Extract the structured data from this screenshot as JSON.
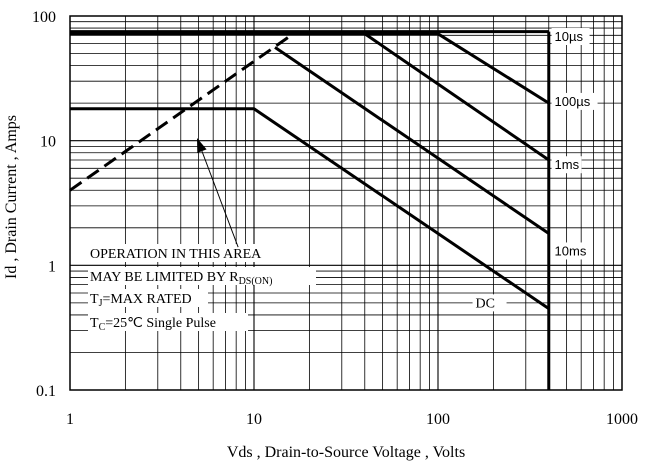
{
  "chart_data": {
    "type": "line",
    "xscale": "log",
    "yscale": "log",
    "xlim": [
      1,
      1000
    ],
    "ylim": [
      0.1,
      100
    ],
    "grid": true,
    "xlabel": "Vds , Drain-to-Source Voltage , Volts",
    "ylabel": "Id , Drain Current , Amps",
    "x_ticks": [
      "1",
      "10",
      "100",
      "1000"
    ],
    "y_ticks": [
      "0.1",
      "1",
      "10",
      "100"
    ],
    "series": [
      {
        "name": "10µs",
        "points": [
          [
            1,
            75
          ],
          [
            400,
            75
          ]
        ],
        "label_at": [
          430,
          63
        ]
      },
      {
        "name": "100µs",
        "points": [
          [
            1,
            72
          ],
          [
            100,
            72
          ],
          [
            400,
            20
          ]
        ],
        "label_at": [
          430,
          19
        ]
      },
      {
        "name": "1ms",
        "points": [
          [
            1,
            72
          ],
          [
            40,
            72
          ],
          [
            400,
            7
          ]
        ],
        "label_at": [
          430,
          5.9
        ]
      },
      {
        "name": "10ms",
        "points": [
          [
            13,
            56
          ],
          [
            400,
            1.8
          ]
        ],
        "label_at": [
          430,
          1.2
        ]
      },
      {
        "name": "DC",
        "points": [
          [
            1,
            18
          ],
          [
            10,
            18
          ],
          [
            400,
            0.45
          ]
        ],
        "label_at": [
          160,
          0.46
        ]
      }
    ],
    "rds_limit": {
      "points": [
        [
          1,
          4
        ],
        [
          17,
          75
        ]
      ],
      "style": "dashed"
    },
    "vds_limit": 400,
    "annotation": {
      "line1": "OPERATION IN THIS AREA",
      "line2_main": "MAY BE LIMITED BY R",
      "line2_sub": "DS(ON)",
      "line3_main": "T",
      "line3_sub": "J",
      "line3_rest": "=MAX RATED",
      "line4_main": "T",
      "line4_sub": "C",
      "line4_rest": "=25℃  Single Pulse",
      "arrow_from": [
        8.2,
        1.4
      ],
      "arrow_to": [
        4.9,
        10.5
      ]
    }
  }
}
